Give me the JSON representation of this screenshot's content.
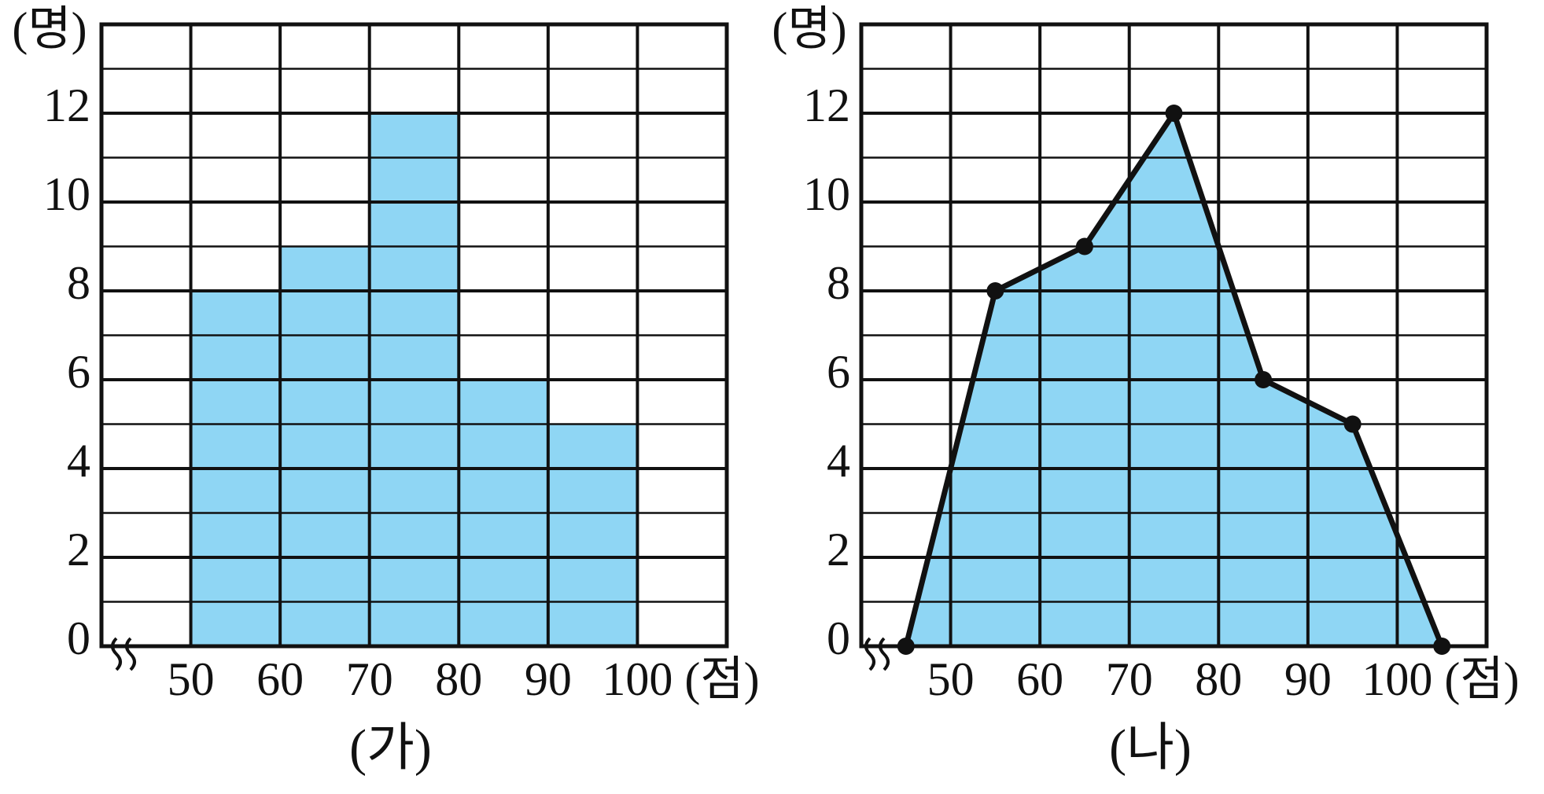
{
  "chart_data": [
    {
      "type": "histogram",
      "y_unit": "(명)",
      "x_unit": "(점)",
      "caption": "(가)",
      "bins": [
        50,
        60,
        70,
        80,
        90,
        100
      ],
      "values": [
        8,
        9,
        12,
        6,
        5
      ],
      "color": "#8fd6f4",
      "xlim": [
        40,
        110
      ],
      "xticks": [
        50,
        60,
        70,
        80,
        90,
        100
      ],
      "ylim": [
        0,
        14
      ],
      "yticks": [
        0,
        2,
        4,
        6,
        8,
        10,
        12
      ],
      "grid": true
    },
    {
      "type": "line",
      "y_unit": "(명)",
      "x_unit": "(점)",
      "caption": "(나)",
      "x": [
        45,
        55,
        65,
        75,
        85,
        95,
        105
      ],
      "values": [
        0,
        8,
        9,
        12,
        6,
        5,
        0
      ],
      "color": "#111111",
      "fill": "#8fd6f4",
      "xlim": [
        40,
        110
      ],
      "xticks": [
        50,
        60,
        70,
        80,
        90,
        100
      ],
      "ylim": [
        0,
        14
      ],
      "yticks": [
        0,
        2,
        4,
        6,
        8,
        10,
        12
      ],
      "grid": true
    }
  ]
}
